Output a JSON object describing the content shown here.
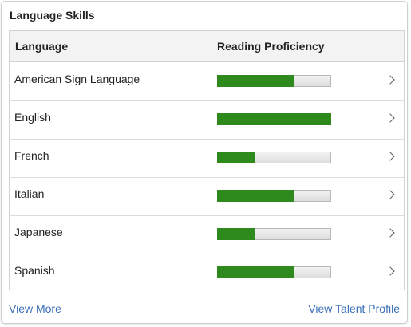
{
  "card": {
    "title": "Language Skills"
  },
  "table": {
    "headers": {
      "language": "Language",
      "proficiency": "Reading Proficiency"
    },
    "rows": [
      {
        "language": "American Sign Language",
        "proficiency": 0.67
      },
      {
        "language": "English",
        "proficiency": 1.0
      },
      {
        "language": "French",
        "proficiency": 0.33
      },
      {
        "language": "Italian",
        "proficiency": 0.67
      },
      {
        "language": "Japanese",
        "proficiency": 0.33
      },
      {
        "language": "Spanish",
        "proficiency": 0.67
      }
    ]
  },
  "footer": {
    "view_more": "View More",
    "view_talent_profile": "View Talent Profile"
  },
  "colors": {
    "bar_fill": "#2e8a1d",
    "link": "#3a6fb8"
  },
  "icons": {
    "row_chevron": "chevron-right-icon"
  }
}
